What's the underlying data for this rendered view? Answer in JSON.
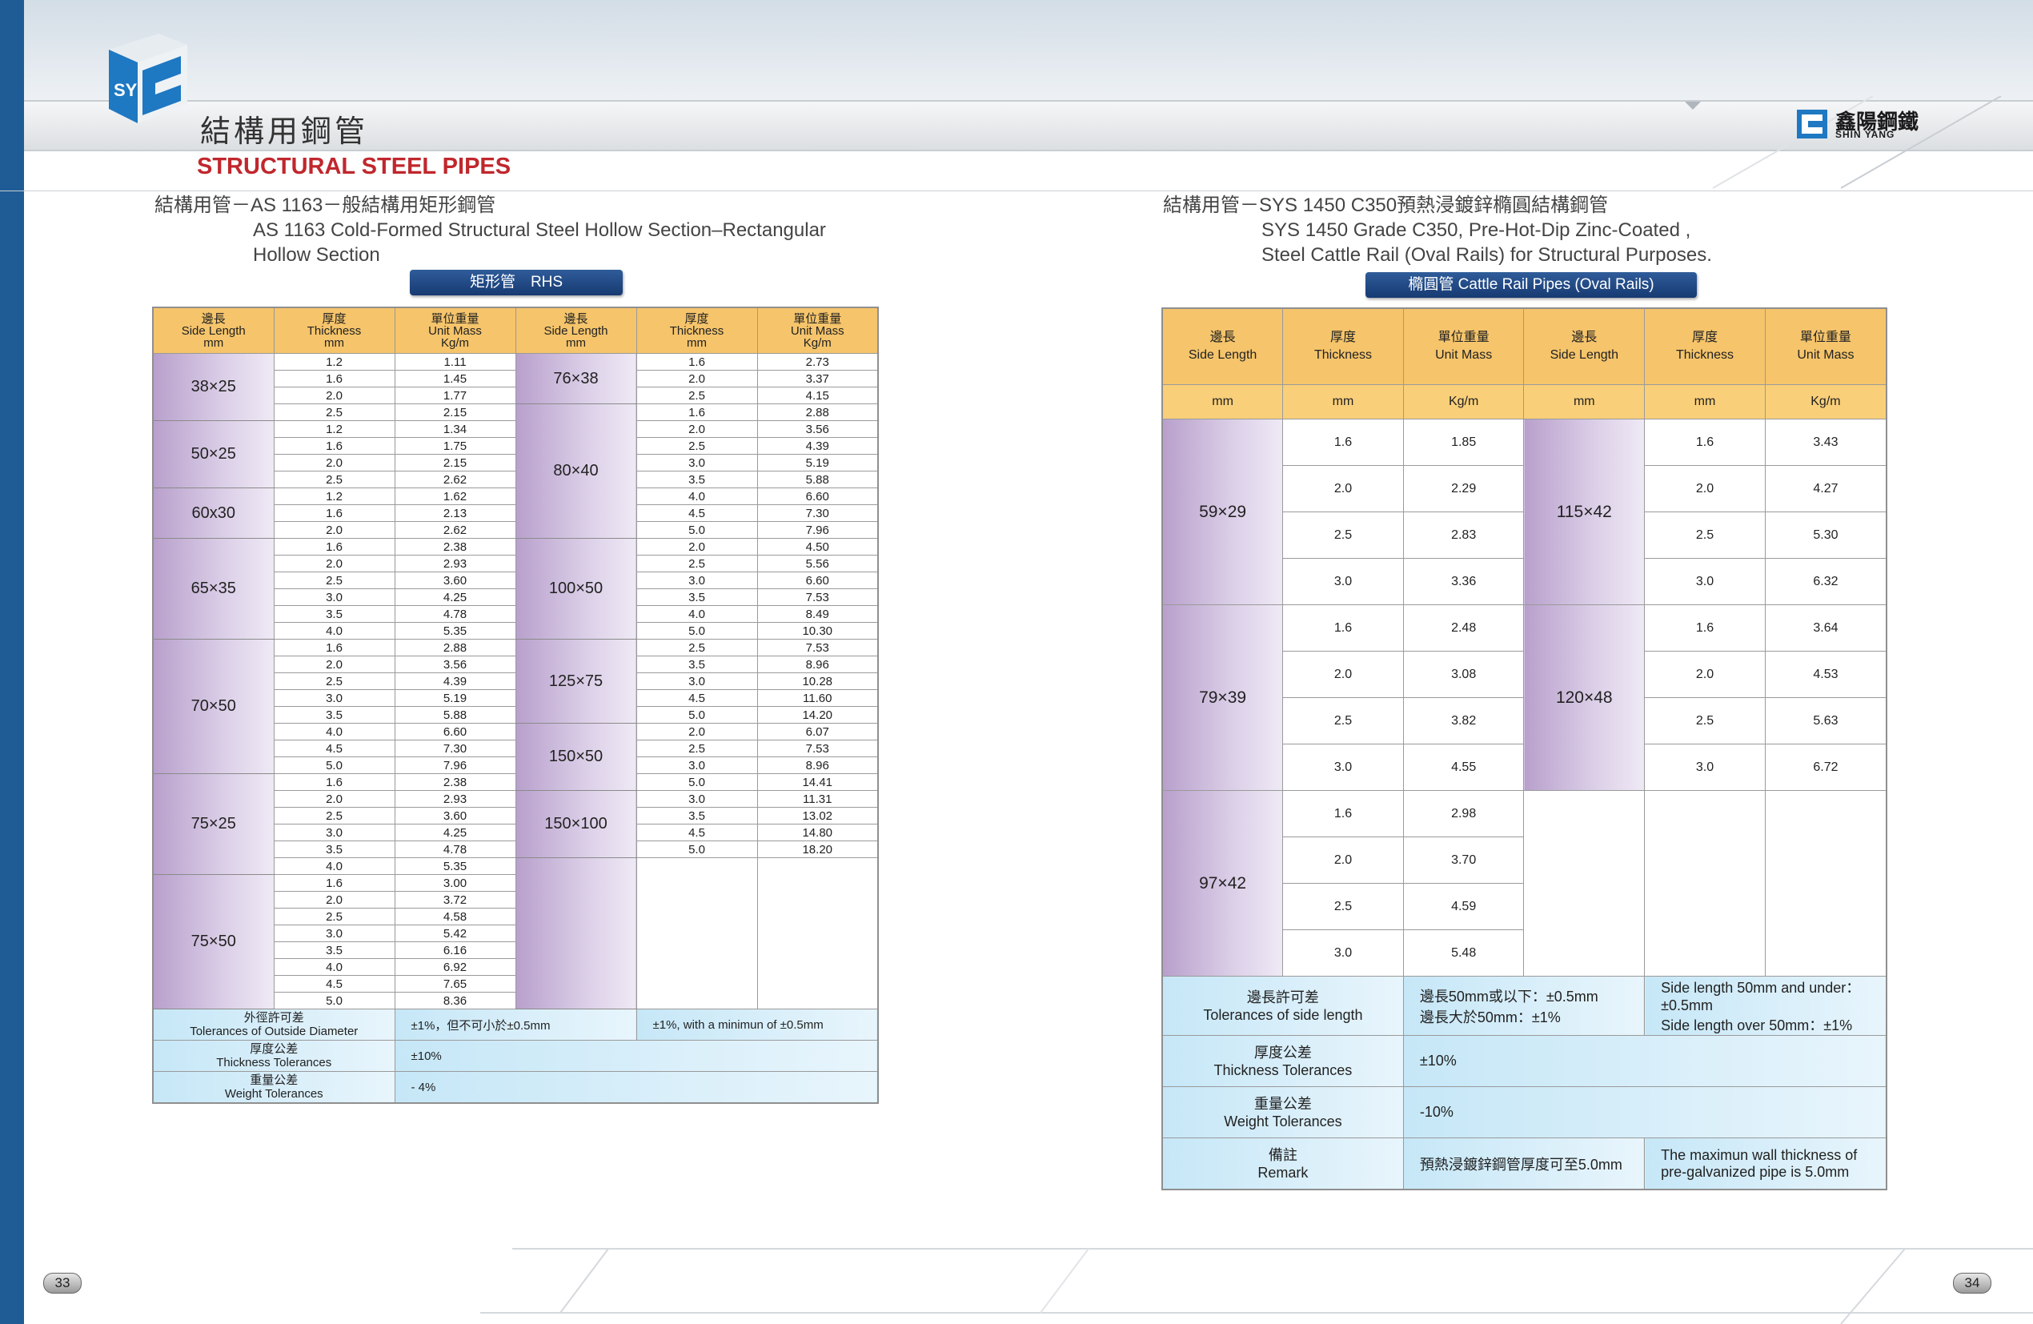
{
  "header": {
    "title_cn": "結構用鋼管",
    "title_en": "STRUCTURAL STEEL PIPES",
    "logo_text": "SY"
  },
  "brand": {
    "name_cn": "鑫陽鋼鐵",
    "name_en": "SHIN YANG"
  },
  "left": {
    "subtitle_line1": "結構用管－AS 1163－般結構用矩形鋼管",
    "subtitle_line2": "AS 1163 Cold-Formed Structural Steel Hollow Section–Rectangular",
    "subtitle_line3": "Hollow Section",
    "pill": "矩形管　RHS",
    "headers": [
      {
        "cn": "邊長",
        "en": "Side Length",
        "unit": "mm"
      },
      {
        "cn": "厚度",
        "en": "Thickness",
        "unit": "mm"
      },
      {
        "cn": "單位重量",
        "en": "Unit Mass",
        "unit": "Kg/m"
      },
      {
        "cn": "邊長",
        "en": "Side Length",
        "unit": "mm"
      },
      {
        "cn": "厚度",
        "en": "Thickness",
        "unit": "mm"
      },
      {
        "cn": "單位重量",
        "en": "Unit Mass",
        "unit": "Kg/m"
      }
    ],
    "groups_a": [
      {
        "size": "38×25",
        "rows": [
          [
            "1.2",
            "1.11"
          ],
          [
            "1.6",
            "1.45"
          ],
          [
            "2.0",
            "1.77"
          ],
          [
            "2.5",
            "2.15"
          ]
        ]
      },
      {
        "size": "50×25",
        "rows": [
          [
            "1.2",
            "1.34"
          ],
          [
            "1.6",
            "1.75"
          ],
          [
            "2.0",
            "2.15"
          ],
          [
            "2.5",
            "2.62"
          ]
        ]
      },
      {
        "size": "60x30",
        "rows": [
          [
            "1.2",
            "1.62"
          ],
          [
            "1.6",
            "2.13"
          ],
          [
            "2.0",
            "2.62"
          ]
        ]
      },
      {
        "size": "65×35",
        "rows": [
          [
            "1.6",
            "2.38"
          ],
          [
            "2.0",
            "2.93"
          ],
          [
            "2.5",
            "3.60"
          ],
          [
            "3.0",
            "4.25"
          ],
          [
            "3.5",
            "4.78"
          ],
          [
            "4.0",
            "5.35"
          ]
        ]
      },
      {
        "size": "70×50",
        "rows": [
          [
            "1.6",
            "2.88"
          ],
          [
            "2.0",
            "3.56"
          ],
          [
            "2.5",
            "4.39"
          ],
          [
            "3.0",
            "5.19"
          ],
          [
            "3.5",
            "5.88"
          ],
          [
            "4.0",
            "6.60"
          ],
          [
            "4.5",
            "7.30"
          ],
          [
            "5.0",
            "7.96"
          ]
        ]
      },
      {
        "size": "75×25",
        "rows": [
          [
            "1.6",
            "2.38"
          ],
          [
            "2.0",
            "2.93"
          ],
          [
            "2.5",
            "3.60"
          ],
          [
            "3.0",
            "4.25"
          ],
          [
            "3.5",
            "4.78"
          ],
          [
            "4.0",
            "5.35"
          ]
        ]
      },
      {
        "size": "75×50",
        "rows": [
          [
            "1.6",
            "3.00"
          ],
          [
            "2.0",
            "3.72"
          ],
          [
            "2.5",
            "4.58"
          ],
          [
            "3.0",
            "5.42"
          ],
          [
            "3.5",
            "6.16"
          ],
          [
            "4.0",
            "6.92"
          ],
          [
            "4.5",
            "7.65"
          ],
          [
            "5.0",
            "8.36"
          ]
        ]
      }
    ],
    "groups_b": [
      {
        "size": "76×38",
        "rows": [
          [
            "1.6",
            "2.73"
          ],
          [
            "2.0",
            "3.37"
          ],
          [
            "2.5",
            "4.15"
          ]
        ]
      },
      {
        "size": "80×40",
        "rows": [
          [
            "1.6",
            "2.88"
          ],
          [
            "2.0",
            "3.56"
          ],
          [
            "2.5",
            "4.39"
          ],
          [
            "3.0",
            "5.19"
          ],
          [
            "3.5",
            "5.88"
          ],
          [
            "4.0",
            "6.60"
          ],
          [
            "4.5",
            "7.30"
          ],
          [
            "5.0",
            "7.96"
          ]
        ]
      },
      {
        "size": "100×50",
        "rows": [
          [
            "2.0",
            "4.50"
          ],
          [
            "2.5",
            "5.56"
          ],
          [
            "3.0",
            "6.60"
          ],
          [
            "3.5",
            "7.53"
          ],
          [
            "4.0",
            "8.49"
          ],
          [
            "5.0",
            "10.30"
          ]
        ]
      },
      {
        "size": "125×75",
        "rows": [
          [
            "2.5",
            "7.53"
          ],
          [
            "3.5",
            "8.96"
          ],
          [
            "3.0",
            "10.28"
          ],
          [
            "4.5",
            "11.60"
          ],
          [
            "5.0",
            "14.20"
          ]
        ]
      },
      {
        "size": "150×50",
        "rows": [
          [
            "2.0",
            "6.07"
          ],
          [
            "2.5",
            "7.53"
          ],
          [
            "3.0",
            "8.96"
          ],
          [
            "5.0",
            "14.41"
          ]
        ]
      },
      {
        "size": "150×100",
        "rows": [
          [
            "3.0",
            "11.31"
          ],
          [
            "3.5",
            "13.02"
          ],
          [
            "4.5",
            "14.80"
          ],
          [
            "5.0",
            "18.20"
          ]
        ]
      }
    ],
    "tolerances": [
      {
        "cn": "外徑許可差",
        "en": "Tolerances of Outside Diameter",
        "v1": "±1%，但不可小於±0.5mm",
        "v2": "±1%, with a minimun of ±0.5mm"
      },
      {
        "cn": "厚度公差",
        "en": "Thickness Tolerances",
        "v1": "±10%",
        "v2": ""
      },
      {
        "cn": "重量公差",
        "en": "Weight Tolerances",
        "v1": "- 4%",
        "v2": ""
      }
    ]
  },
  "right": {
    "subtitle_line1": "結構用管－SYS 1450 C350預熱浸鍍鋅橢圓結構鋼管",
    "subtitle_line2": "SYS 1450 Grade C350, Pre-Hot-Dip Zinc-Coated ,",
    "subtitle_line3": "Steel Cattle Rail (Oval Rails)  for Structural Purposes.",
    "pill": "橢圓管 Cattle Rail Pipes (Oval Rails)",
    "headers": [
      {
        "cn": "邊長",
        "en": "Side Length",
        "unit": "mm"
      },
      {
        "cn": "厚度",
        "en": "Thickness",
        "unit": "mm"
      },
      {
        "cn": "單位重量",
        "en": "Unit Mass",
        "unit": "Kg/m"
      },
      {
        "cn": "邊長",
        "en": "Side Length",
        "unit": "mm"
      },
      {
        "cn": "厚度",
        "en": "Thickness",
        "unit": "mm"
      },
      {
        "cn": "單位重量",
        "en": "Unit Mass",
        "unit": "Kg/m"
      }
    ],
    "groups_a": [
      {
        "size": "59×29",
        "rows": [
          [
            "1.6",
            "1.85"
          ],
          [
            "2.0",
            "2.29"
          ],
          [
            "2.5",
            "2.83"
          ],
          [
            "3.0",
            "3.36"
          ]
        ]
      },
      {
        "size": "79×39",
        "rows": [
          [
            "1.6",
            "2.48"
          ],
          [
            "2.0",
            "3.08"
          ],
          [
            "2.5",
            "3.82"
          ],
          [
            "3.0",
            "4.55"
          ]
        ]
      },
      {
        "size": "97×42",
        "rows": [
          [
            "1.6",
            "2.98"
          ],
          [
            "2.0",
            "3.70"
          ],
          [
            "2.5",
            "4.59"
          ],
          [
            "3.0",
            "5.48"
          ]
        ]
      }
    ],
    "groups_b": [
      {
        "size": "115×42",
        "rows": [
          [
            "1.6",
            "3.43"
          ],
          [
            "2.0",
            "4.27"
          ],
          [
            "2.5",
            "5.30"
          ],
          [
            "3.0",
            "6.32"
          ]
        ]
      },
      {
        "size": "120×48",
        "rows": [
          [
            "1.6",
            "3.64"
          ],
          [
            "2.0",
            "4.53"
          ],
          [
            "2.5",
            "5.63"
          ],
          [
            "3.0",
            "6.72"
          ]
        ]
      }
    ],
    "tolerances": [
      {
        "cn": "邊長許可差",
        "en": "Tolerances of side length",
        "v1a": "邊長50mm或以下：±0.5mm",
        "v1b": "邊長大於50mm：±1%",
        "v2a": "Side length 50mm and under：±0.5mm",
        "v2b": "Side length over 50mm：±1%"
      },
      {
        "cn": "厚度公差",
        "en": "Thickness Tolerances",
        "v1a": "±10%"
      },
      {
        "cn": "重量公差",
        "en": "Weight Tolerances",
        "v1a": "-10%"
      },
      {
        "cn": "備註",
        "en": "Remark",
        "v1a": "預熱浸鍍鋅鋼管厚度可至5.0mm",
        "v2a": "The maximun wall thickness of",
        "v2b": "pre-galvanized pipe is 5.0mm"
      }
    ]
  },
  "pages": {
    "left": "33",
    "right": "34"
  }
}
